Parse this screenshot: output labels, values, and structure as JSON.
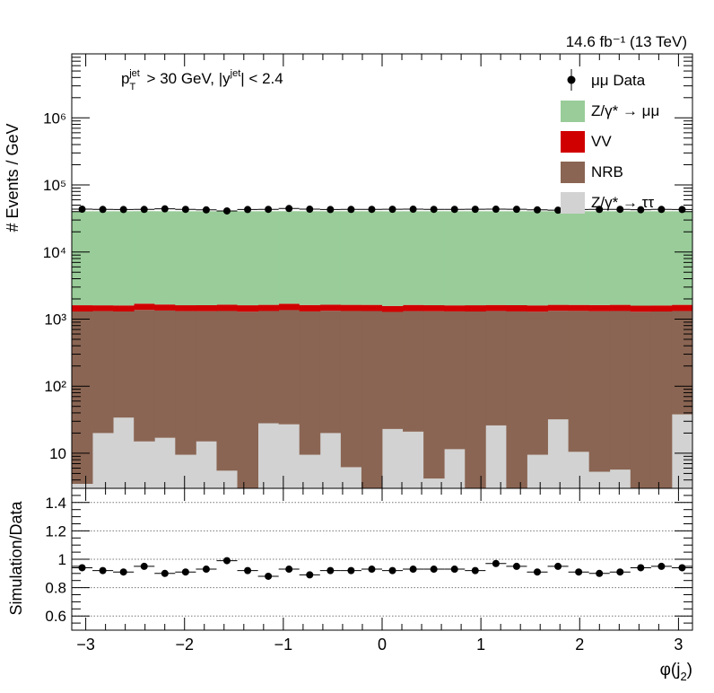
{
  "chart_data": [
    {
      "type": "bar",
      "stacked": true,
      "log_scale": true,
      "lumi_text": "14.6 fb⁻¹ (13 TeV)",
      "cut_text": "p_T^jet > 30 GeV,  |y^jet| < 2.4",
      "ylabel": "# Events / GeV",
      "ylim": [
        3,
        9000000
      ],
      "yticks": [
        {
          "value": 10,
          "label": "10"
        },
        {
          "value": 100,
          "label": "10²"
        },
        {
          "value": 1000,
          "label": "10³"
        },
        {
          "value": 10000,
          "label": "10⁴"
        },
        {
          "value": 100000,
          "label": "10⁵"
        },
        {
          "value": 1000000,
          "label": "10⁶"
        }
      ],
      "xlim": [
        -3.14159,
        3.14159
      ],
      "n_bins": 30,
      "legend_position": "top-right",
      "series": [
        {
          "name": "Z/γ* → ττ",
          "color": "#d2d2d2",
          "values": [
            3.5,
            20,
            34,
            15,
            17,
            9.5,
            15,
            5.5,
            2,
            28,
            27,
            9.5,
            20,
            6.2,
            2,
            23,
            21,
            4.2,
            11.5,
            2,
            26,
            2,
            9.5,
            32,
            10.5,
            5.3,
            5.7,
            2,
            2,
            38
          ]
        },
        {
          "name": "NRB",
          "color": "#8a6553",
          "values": [
            1295,
            1295,
            1265,
            1355,
            1325,
            1305,
            1296,
            1315,
            1286,
            1292,
            1335,
            1292,
            1310,
            1314,
            1316,
            1257,
            1294,
            1306,
            1291,
            1296,
            1296,
            1299,
            1281,
            1298,
            1315,
            1304,
            1315,
            1286,
            1296,
            1282
          ]
        },
        {
          "name": "VV",
          "color": "#d00000",
          "values": [
            310,
            290,
            300,
            330,
            310,
            295,
            300,
            320,
            320,
            310,
            330,
            320,
            310,
            310,
            310,
            290,
            310,
            300,
            300,
            310,
            300,
            310,
            310,
            300,
            300,
            310,
            310,
            300,
            300,
            310
          ]
        },
        {
          "name": "Z/γ* → μμ",
          "color": "#99cc99",
          "values": [
            38900,
            38900,
            38900,
            38900,
            38900,
            38900,
            38900,
            38900,
            38900,
            38900,
            38900,
            38900,
            38900,
            38900,
            38900,
            38900,
            38900,
            38900,
            38900,
            38900,
            38900,
            38900,
            38900,
            38900,
            38900,
            38900,
            38900,
            38900,
            38900,
            38900
          ]
        }
      ],
      "data": {
        "name": "μμ Data",
        "values": [
          43500,
          43200,
          43000,
          43200,
          44000,
          43300,
          42500,
          41000,
          43000,
          43300,
          44500,
          43500,
          43000,
          43200,
          43300,
          43400,
          43500,
          43300,
          43300,
          43400,
          43500,
          43400,
          42500,
          42000,
          43000,
          43200,
          43300,
          42700,
          43200,
          43000
        ]
      },
      "legend": [
        {
          "label": "μμ Data",
          "kind": "marker"
        },
        {
          "label": "Z/γ* → μμ",
          "kind": "box",
          "color": "#99cc99"
        },
        {
          "label": "VV",
          "kind": "box",
          "color": "#d00000"
        },
        {
          "label": "NRB",
          "kind": "box",
          "color": "#8a6553"
        },
        {
          "label": "Z/γ* → ττ",
          "kind": "box",
          "color": "#d2d2d2"
        }
      ]
    },
    {
      "type": "scatter",
      "ylabel": "Simulation/Data",
      "xlabel": "φ(j₂)",
      "ylim": [
        0.5,
        1.5
      ],
      "xlim": [
        -3.14159,
        3.14159
      ],
      "yticks": [
        {
          "value": 0.6,
          "label": "0.6"
        },
        {
          "value": 0.8,
          "label": "0.8"
        },
        {
          "value": 1.0,
          "label": "1"
        },
        {
          "value": 1.2,
          "label": "1.2"
        },
        {
          "value": 1.4,
          "label": "1.4"
        }
      ],
      "xticks": [
        {
          "value": -3,
          "label": "−3"
        },
        {
          "value": -2,
          "label": "−2"
        },
        {
          "value": -1,
          "label": "−1"
        },
        {
          "value": 0,
          "label": "0"
        },
        {
          "value": 1,
          "label": "1"
        },
        {
          "value": 2,
          "label": "2"
        },
        {
          "value": 3,
          "label": "3"
        }
      ],
      "gridlines_y": [
        0.6,
        0.8,
        1.0,
        1.2,
        1.4
      ],
      "values": [
        0.94,
        0.92,
        0.91,
        0.95,
        0.9,
        0.91,
        0.93,
        0.99,
        0.92,
        0.88,
        0.93,
        0.89,
        0.92,
        0.92,
        0.93,
        0.92,
        0.93,
        0.93,
        0.93,
        0.92,
        0.97,
        0.95,
        0.91,
        0.95,
        0.91,
        0.9,
        0.91,
        0.94,
        0.95,
        0.94
      ]
    }
  ]
}
